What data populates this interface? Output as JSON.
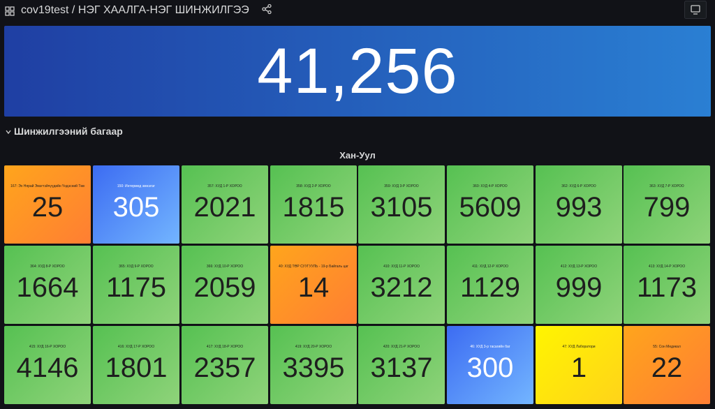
{
  "header": {
    "title": "cov19test / НЭГ ХААЛГА-НЭГ ШИНЖИЛГЭЭ"
  },
  "total": "41,256",
  "section": "Шинжилгээний багаар",
  "panel": {
    "title": "Хан-Уул",
    "tiles": [
      {
        "label": "167: Эх Нярай Эмэгтэйчүүдийн Үндэсний Төв",
        "value": 25,
        "color": "orange"
      },
      {
        "label": "150: Интермед эмнэлэг",
        "value": 305,
        "color": "blue"
      },
      {
        "label": "357: ХУД 1-Р ХОРОО",
        "value": 2021,
        "color": "green"
      },
      {
        "label": "358: ХУД 2-Р ХОРОО",
        "value": 1815,
        "color": "green"
      },
      {
        "label": "359: ХУД 3-Р ХОРОО",
        "value": 3105,
        "color": "green"
      },
      {
        "label": "360: ХУД 4-Р ХОРОО",
        "value": 5609,
        "color": "green"
      },
      {
        "label": "362: ХУД 6-Р ХОРОО",
        "value": 993,
        "color": "green"
      },
      {
        "label": "363: ХУД 7-Р ХОРОО",
        "value": 799,
        "color": "green"
      },
      {
        "label": "364: ХУД 8-Р ХОРОО",
        "value": 1664,
        "color": "green"
      },
      {
        "label": "365: ХУД 9-Р ХОРОО",
        "value": 1175,
        "color": "green"
      },
      {
        "label": "366: ХУД 10-Р ХОРОО",
        "value": 2059,
        "color": "green"
      },
      {
        "label": "40: ХУД ТӨР СУУГУУЛЬ - 19-р Байгаль цаг",
        "value": 14,
        "color": "orange"
      },
      {
        "label": "410: ХУД 11-Р ХОРОО",
        "value": 3212,
        "color": "green"
      },
      {
        "label": "411: ХУД 12-Р ХОРОО",
        "value": 1129,
        "color": "green"
      },
      {
        "label": "412: ХУД 13-Р ХОРОО",
        "value": 999,
        "color": "green"
      },
      {
        "label": "413: ХУД 14-Р ХОРОО",
        "value": 1173,
        "color": "green"
      },
      {
        "label": "415: ХУД 16-Р ХОРОО",
        "value": 4146,
        "color": "green"
      },
      {
        "label": "416: ХУД 17-Р ХОРОО",
        "value": 1801,
        "color": "green"
      },
      {
        "label": "417: ХУД 18-Р ХОРОО",
        "value": 2357,
        "color": "green"
      },
      {
        "label": "419: ХУД 20-Р ХОРОО",
        "value": 3395,
        "color": "green"
      },
      {
        "label": "420: ХУД 21-Р ХОРОО",
        "value": 3137,
        "color": "green"
      },
      {
        "label": "46: ХУД 3-р тасагийн баг",
        "value": 300,
        "color": "blue"
      },
      {
        "label": "47: ХУД Лаборатори",
        "value": 1,
        "color": "yellow"
      },
      {
        "label": "55: Сон Медикал",
        "value": 22,
        "color": "orange"
      }
    ]
  }
}
